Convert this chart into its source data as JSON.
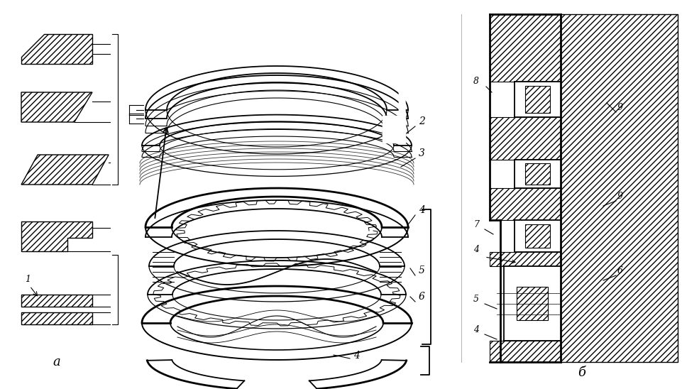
{
  "bg_color": "#ffffff",
  "figsize": [
    9.61,
    5.48
  ],
  "dpi": 100,
  "label_a": "а",
  "label_b": "б"
}
